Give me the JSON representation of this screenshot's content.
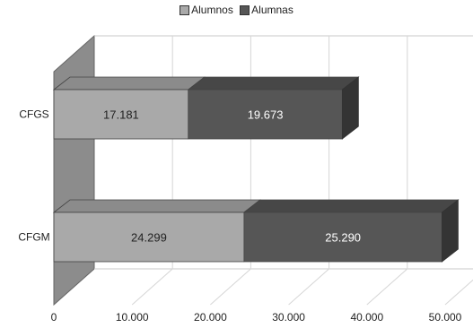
{
  "chart_data": {
    "type": "bar",
    "orientation": "horizontal",
    "stacked": true,
    "three_d": true,
    "categories": [
      "CFGS",
      "CFGM"
    ],
    "series": [
      {
        "name": "Alumnos",
        "values": [
          17181,
          24299
        ],
        "labels": [
          "17.181",
          "24.299"
        ],
        "color": "#a9a9a9"
      },
      {
        "name": "Alumnas",
        "values": [
          19673,
          25290
        ],
        "labels": [
          "19.673",
          "25.290"
        ],
        "color": "#565656"
      }
    ],
    "x_ticks": [
      "0",
      "10.000",
      "20.000",
      "30.000",
      "40.000",
      "50.000"
    ],
    "xlim": [
      0,
      50000
    ],
    "grid": true,
    "legend_position": "top"
  }
}
